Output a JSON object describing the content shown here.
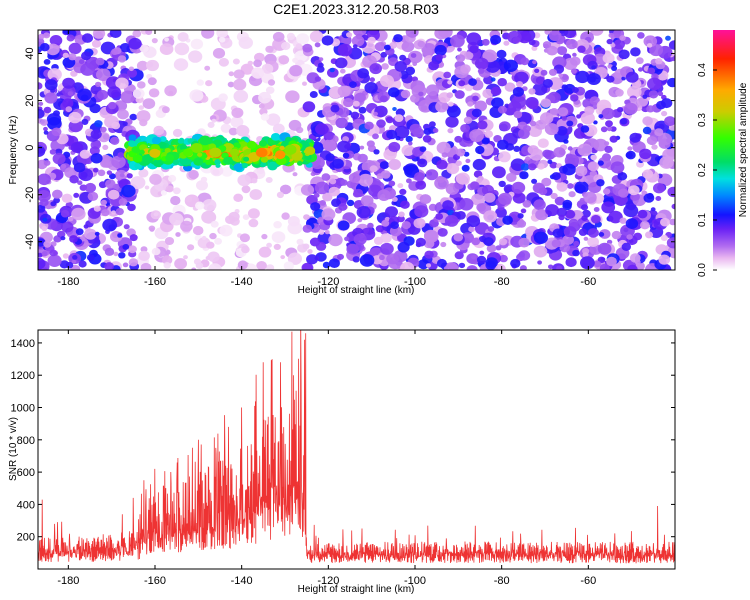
{
  "title": "C2E1.2023.312.20.58.R03",
  "chart_data": [
    {
      "type": "heatmap",
      "xlabel": "Height of straight line (km)",
      "ylabel": "Frequency (Hz)",
      "xlim": [
        -187,
        -40
      ],
      "ylim": [
        -52,
        50
      ],
      "x_ticks": [
        -180,
        -160,
        -140,
        -120,
        -100,
        -80,
        -60
      ],
      "y_ticks": [
        -40,
        -20,
        0,
        20,
        40
      ],
      "colorbar": {
        "label": "Normalized spectral amplitude",
        "range": [
          0,
          0.48
        ],
        "ticks": [
          0.0,
          0.1,
          0.2,
          0.3,
          0.4
        ],
        "colormap": [
          "#ffffff",
          "#e9b7f0",
          "#9b3ff0",
          "#5a1cf5",
          "#1414ff",
          "#0088ff",
          "#00e0e0",
          "#00dd66",
          "#33ff00",
          "#cccc00",
          "#ffaa00",
          "#ff2200",
          "#ff1199"
        ]
      },
      "regions": [
        {
          "name": "near-empty background",
          "x_range": [
            -164,
            -125
          ],
          "level": 0.02
        },
        {
          "name": "signal band",
          "x_range": [
            -166,
            -124
          ],
          "freq_range": [
            -9,
            5
          ],
          "center_freq": -2,
          "level_range": [
            0.12,
            0.4
          ]
        },
        {
          "name": "noise background",
          "x_range": [
            -187,
            -40
          ],
          "level_range": [
            0.03,
            0.1
          ]
        }
      ],
      "grid": false
    },
    {
      "type": "line",
      "xlabel": "Height of straight line (km)",
      "ylabel": "SNR (10 * v/v)",
      "xlim": [
        -187,
        -40
      ],
      "ylim": [
        0,
        1480
      ],
      "x_ticks": [
        -180,
        -160,
        -140,
        -120,
        -100,
        -80,
        -60
      ],
      "y_ticks": [
        200,
        400,
        600,
        800,
        1000,
        1200,
        1400
      ],
      "series": [
        {
          "color": "#ee3333",
          "envelope": [
            {
              "x": -187,
              "y": 160
            },
            {
              "x": -175,
              "y": 170
            },
            {
              "x": -165,
              "y": 200
            },
            {
              "x": -160,
              "y": 340
            },
            {
              "x": -150,
              "y": 420
            },
            {
              "x": -140,
              "y": 520
            },
            {
              "x": -133,
              "y": 700
            },
            {
              "x": -128,
              "y": 720
            },
            {
              "x": -126,
              "y": 800
            },
            {
              "x": -124.8,
              "y": 140
            },
            {
              "x": -110,
              "y": 140
            },
            {
              "x": -90,
              "y": 145
            },
            {
              "x": -70,
              "y": 140
            },
            {
              "x": -40,
              "y": 140
            }
          ],
          "peaks": [
            {
              "x": -186,
              "y": 430
            },
            {
              "x": -165,
              "y": 440
            },
            {
              "x": -160,
              "y": 620
            },
            {
              "x": -158,
              "y": 510
            },
            {
              "x": -155,
              "y": 550
            },
            {
              "x": -150,
              "y": 800
            },
            {
              "x": -146,
              "y": 750
            },
            {
              "x": -143,
              "y": 880
            },
            {
              "x": -140,
              "y": 1000
            },
            {
              "x": -137,
              "y": 1010
            },
            {
              "x": -135,
              "y": 1280
            },
            {
              "x": -133,
              "y": 1300
            },
            {
              "x": -131,
              "y": 1280
            },
            {
              "x": -128,
              "y": 1200
            },
            {
              "x": -125.5,
              "y": 1420
            },
            {
              "x": -125.2,
              "y": 1460
            },
            {
              "x": -44,
              "y": 390
            }
          ]
        }
      ],
      "grid": false
    }
  ]
}
